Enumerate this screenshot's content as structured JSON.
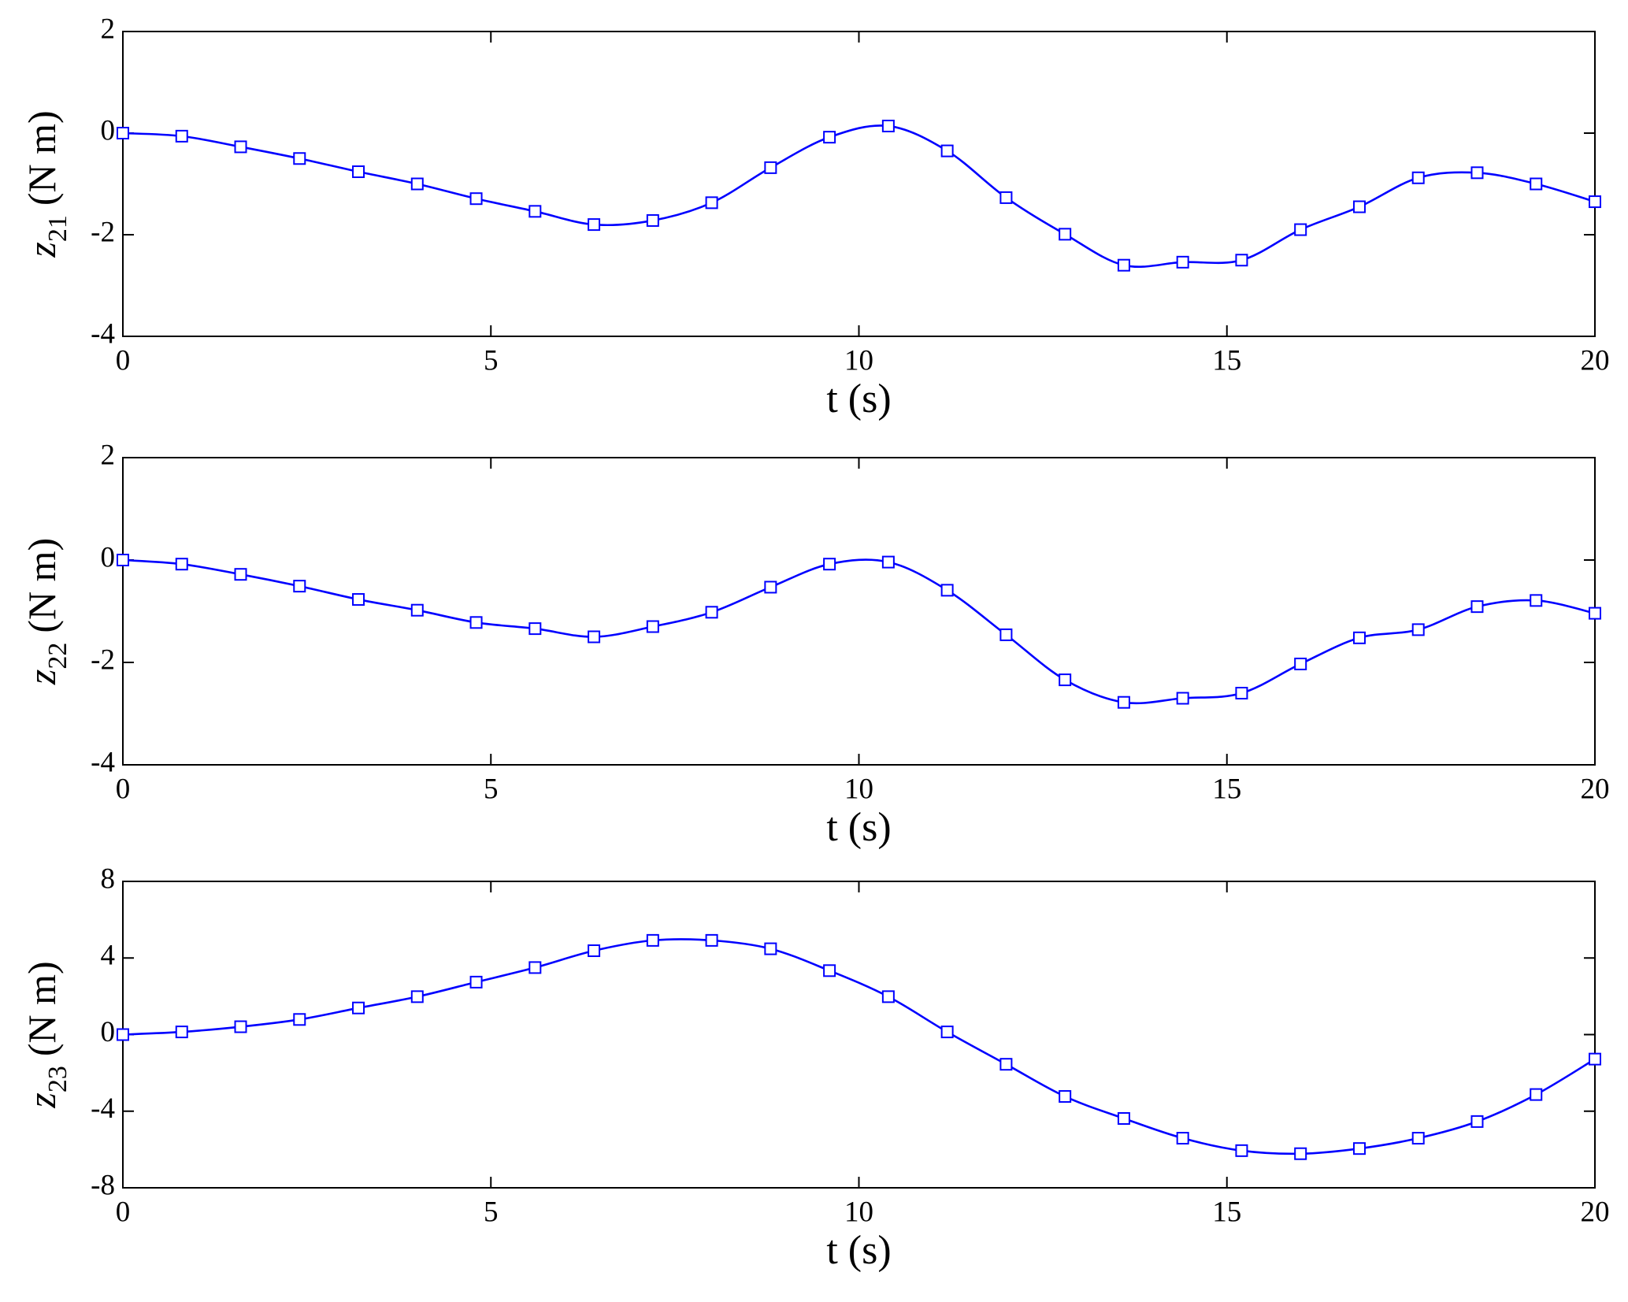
{
  "chart_data": [
    {
      "type": "line",
      "xlabel": "t (s)",
      "ylabel_var": "z",
      "ylabel_sub": "21",
      "ylabel_unit": "(N m)",
      "xlim": [
        0,
        20
      ],
      "xticks": [
        0,
        5,
        10,
        15,
        20
      ],
      "ylim": [
        -4,
        2
      ],
      "yticks": [
        -4,
        -2,
        0,
        2
      ],
      "series": [
        {
          "color": "#0000ff",
          "x": [
            0,
            0.8,
            1.6,
            2.4,
            3.2,
            4.0,
            4.8,
            5.6,
            6.4,
            7.2,
            8.0,
            8.8,
            9.6,
            10.4,
            11.2,
            12.0,
            12.8,
            13.6,
            14.4,
            15.2,
            16.0,
            16.8,
            17.6,
            18.4,
            19.2,
            20
          ],
          "values": [
            0,
            -0.06,
            -0.27,
            -0.5,
            -0.76,
            -1.0,
            -1.29,
            -1.54,
            -1.8,
            -1.72,
            -1.37,
            -0.68,
            -0.08,
            0.14,
            -0.35,
            -1.27,
            -1.99,
            -2.6,
            -2.54,
            -2.5,
            -1.9,
            -1.45,
            -0.88,
            -0.78,
            -1.0,
            -1.35
          ]
        }
      ]
    },
    {
      "type": "line",
      "xlabel": "t (s)",
      "ylabel_var": "z",
      "ylabel_sub": "22",
      "ylabel_unit": "(N m)",
      "xlim": [
        0,
        20
      ],
      "xticks": [
        0,
        5,
        10,
        15,
        20
      ],
      "ylim": [
        -4,
        2
      ],
      "yticks": [
        -4,
        -2,
        0,
        2
      ],
      "series": [
        {
          "color": "#0000ff",
          "x": [
            0,
            0.8,
            1.6,
            2.4,
            3.2,
            4.0,
            4.8,
            5.6,
            6.4,
            7.2,
            8.0,
            8.8,
            9.6,
            10.4,
            11.2,
            12.0,
            12.8,
            13.6,
            14.4,
            15.2,
            16.0,
            16.8,
            17.6,
            18.4,
            19.2,
            20
          ],
          "values": [
            0,
            -0.08,
            -0.28,
            -0.51,
            -0.77,
            -0.98,
            -1.22,
            -1.34,
            -1.5,
            -1.3,
            -1.02,
            -0.53,
            -0.08,
            -0.04,
            -0.59,
            -1.46,
            -2.34,
            -2.78,
            -2.7,
            -2.6,
            -2.03,
            -1.52,
            -1.36,
            -0.91,
            -0.79,
            -1.04
          ]
        }
      ]
    },
    {
      "type": "line",
      "xlabel": "t (s)",
      "ylabel_var": "z",
      "ylabel_sub": "23",
      "ylabel_unit": "(N m)",
      "xlim": [
        0,
        20
      ],
      "xticks": [
        0,
        5,
        10,
        15,
        20
      ],
      "ylim": [
        -8,
        8
      ],
      "yticks": [
        -8,
        -4,
        0,
        4,
        8
      ],
      "series": [
        {
          "color": "#0000ff",
          "x": [
            0,
            0.8,
            1.6,
            2.4,
            3.2,
            4.0,
            4.8,
            5.6,
            6.4,
            7.2,
            8.0,
            8.8,
            9.6,
            10.4,
            11.2,
            12.0,
            12.8,
            13.6,
            14.4,
            15.2,
            16.0,
            16.8,
            17.6,
            18.4,
            19.2,
            20
          ],
          "values": [
            0,
            0.14,
            0.41,
            0.79,
            1.39,
            1.98,
            2.74,
            3.5,
            4.38,
            4.92,
            4.92,
            4.48,
            3.34,
            1.98,
            0.14,
            -1.55,
            -3.23,
            -4.38,
            -5.41,
            -6.06,
            -6.22,
            -5.95,
            -5.41,
            -4.54,
            -3.13,
            -1.28
          ]
        }
      ]
    }
  ]
}
